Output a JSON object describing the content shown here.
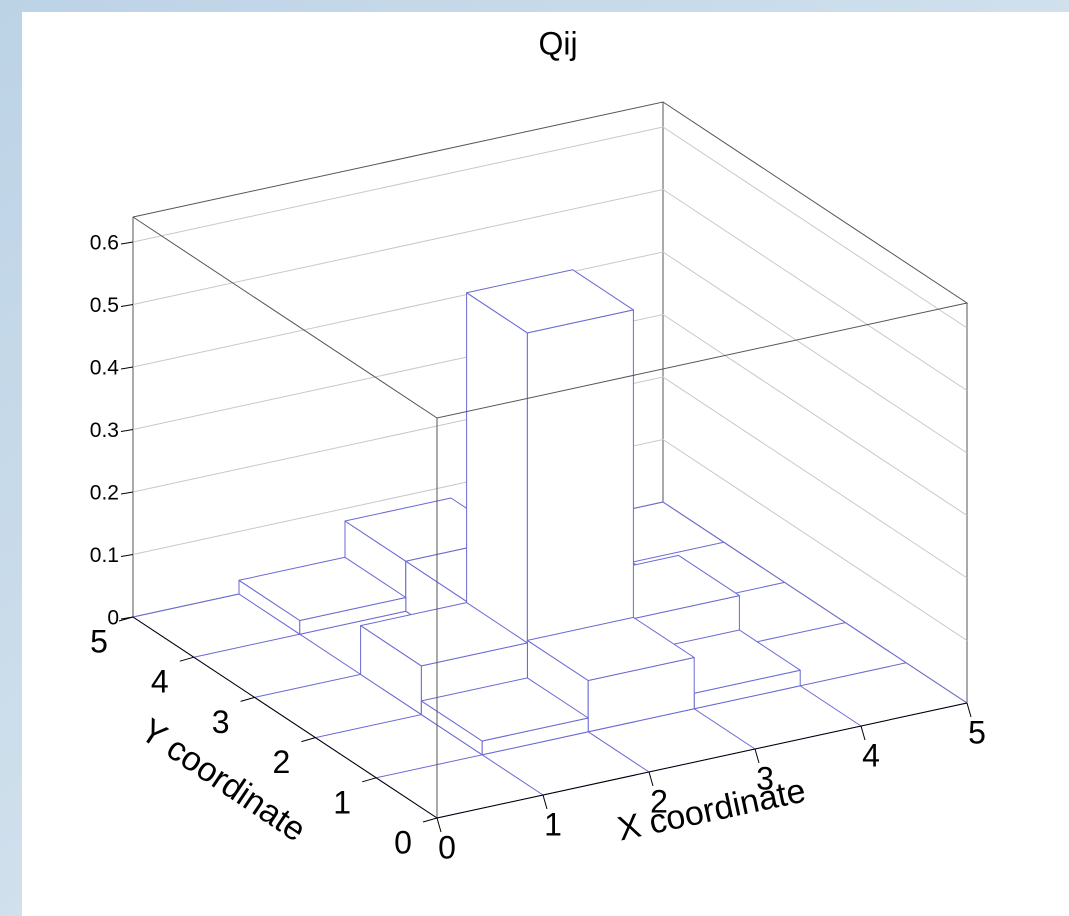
{
  "chart_data": {
    "type": "lego",
    "title": "Qij",
    "x_label": "X coordinate",
    "y_label": "Y coordinate",
    "xlim": [
      0,
      5
    ],
    "ylim": [
      0,
      5
    ],
    "zlim": [
      0,
      0.64
    ],
    "xticks": [
      0,
      1,
      2,
      3,
      4,
      5
    ],
    "yticks": [
      0,
      1,
      2,
      3,
      4,
      5
    ],
    "zticks": [
      0,
      0.1,
      0.2,
      0.3,
      0.4,
      0.5,
      0.6
    ],
    "values": [
      [
        0,
        0,
        0,
        0,
        0
      ],
      [
        0,
        0.022,
        0.082,
        0.025,
        0
      ],
      [
        0,
        0.078,
        0.574,
        0.08,
        0
      ],
      [
        0,
        0,
        0.08,
        0.02,
        0
      ],
      [
        0,
        0.022,
        0.08,
        0,
        0
      ]
    ],
    "color": "#6a6ad2",
    "grid": true
  }
}
